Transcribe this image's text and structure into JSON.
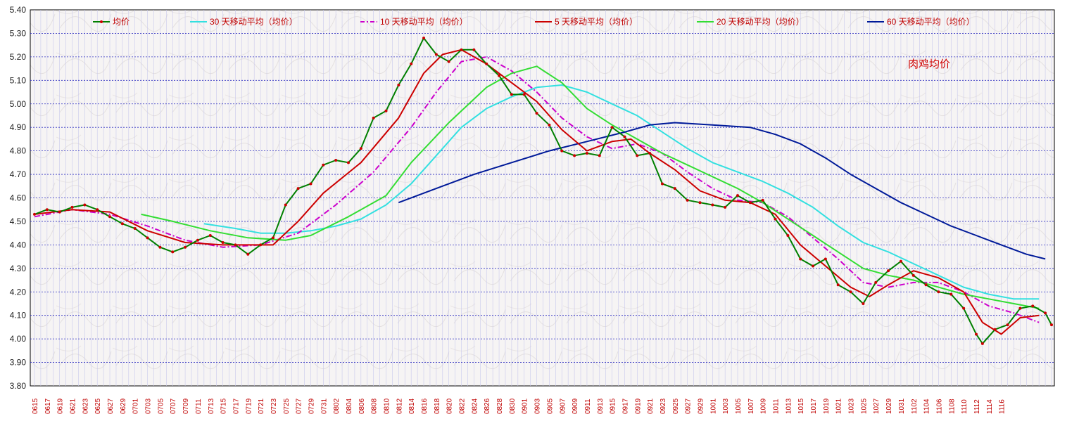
{
  "chart_data": {
    "type": "line",
    "title": "",
    "annotation": "肉鸡均价",
    "xlabel": "",
    "ylabel": "",
    "ylim": [
      3.8,
      5.4
    ],
    "yticks": [
      "3.80",
      "3.90",
      "4.00",
      "4.10",
      "4.20",
      "4.30",
      "4.40",
      "4.50",
      "4.60",
      "4.70",
      "4.80",
      "4.90",
      "5.00",
      "5.10",
      "5.20",
      "5.30",
      "5.40"
    ],
    "grid": true,
    "legend_position": "top",
    "categories": [
      "0615",
      "0617",
      "0619",
      "0621",
      "0623",
      "0625",
      "0627",
      "0629",
      "0701",
      "0703",
      "0705",
      "0707",
      "0709",
      "0711",
      "0713",
      "0715",
      "0717",
      "0719",
      "0721",
      "0723",
      "0725",
      "0727",
      "0729",
      "0731",
      "0802",
      "0804",
      "0806",
      "0808",
      "0810",
      "0812",
      "0814",
      "0816",
      "0818",
      "0820",
      "0822",
      "0824",
      "0826",
      "0828",
      "0830",
      "0901",
      "0903",
      "0905",
      "0907",
      "0909",
      "0911",
      "0913",
      "0915",
      "0917",
      "0919",
      "0921",
      "0923",
      "0925",
      "0927",
      "0929",
      "1001",
      "1003",
      "1005",
      "1007",
      "1009",
      "1011",
      "1013",
      "1015",
      "1017",
      "1019",
      "1021",
      "1023",
      "1025",
      "1027",
      "1029",
      "1031",
      "1102",
      "1104",
      "1106",
      "1108",
      "1110",
      "1112",
      "1114",
      "1116"
    ],
    "series": [
      {
        "name": "均价",
        "color": "#008000",
        "marker_color": "#cc0000",
        "style": "solid-marker",
        "values": [
          [
            0,
            4.53
          ],
          [
            2,
            4.55
          ],
          [
            4,
            4.54
          ],
          [
            6,
            4.56
          ],
          [
            8,
            4.57
          ],
          [
            10,
            4.55
          ],
          [
            12,
            4.52
          ],
          [
            14,
            4.49
          ],
          [
            16,
            4.47
          ],
          [
            18,
            4.43
          ],
          [
            20,
            4.39
          ],
          [
            22,
            4.37
          ],
          [
            24,
            4.39
          ],
          [
            26,
            4.42
          ],
          [
            28,
            4.44
          ],
          [
            30,
            4.41
          ],
          [
            32,
            4.4
          ],
          [
            34,
            4.36
          ],
          [
            36,
            4.4
          ],
          [
            38,
            4.43
          ],
          [
            40,
            4.57
          ],
          [
            42,
            4.64
          ],
          [
            44,
            4.66
          ],
          [
            46,
            4.74
          ],
          [
            48,
            4.76
          ],
          [
            50,
            4.75
          ],
          [
            52,
            4.81
          ],
          [
            54,
            4.94
          ],
          [
            56,
            4.97
          ],
          [
            58,
            5.08
          ],
          [
            60,
            5.17
          ],
          [
            62,
            5.28
          ],
          [
            64,
            5.21
          ],
          [
            66,
            5.18
          ],
          [
            68,
            5.23
          ],
          [
            70,
            5.23
          ],
          [
            72,
            5.17
          ],
          [
            74,
            5.12
          ],
          [
            76,
            5.04
          ],
          [
            78,
            5.04
          ],
          [
            80,
            4.96
          ],
          [
            82,
            4.91
          ],
          [
            84,
            4.8
          ],
          [
            86,
            4.78
          ],
          [
            88,
            4.79
          ],
          [
            90,
            4.78
          ],
          [
            92,
            4.9
          ],
          [
            94,
            4.86
          ],
          [
            96,
            4.78
          ],
          [
            98,
            4.79
          ],
          [
            100,
            4.66
          ],
          [
            102,
            4.64
          ],
          [
            104,
            4.59
          ],
          [
            106,
            4.58
          ],
          [
            108,
            4.57
          ],
          [
            110,
            4.56
          ],
          [
            112,
            4.61
          ],
          [
            114,
            4.58
          ],
          [
            116,
            4.59
          ],
          [
            118,
            4.51
          ],
          [
            120,
            4.44
          ],
          [
            122,
            4.34
          ],
          [
            124,
            4.31
          ],
          [
            126,
            4.34
          ],
          [
            128,
            4.23
          ],
          [
            130,
            4.2
          ],
          [
            132,
            4.15
          ],
          [
            134,
            4.24
          ],
          [
            136,
            4.29
          ],
          [
            138,
            4.33
          ],
          [
            140,
            4.27
          ],
          [
            142,
            4.23
          ],
          [
            144,
            4.2
          ],
          [
            146,
            4.19
          ],
          [
            148,
            4.13
          ],
          [
            150,
            4.02
          ],
          [
            151,
            3.98
          ],
          [
            153,
            4.04
          ],
          [
            155,
            4.06
          ],
          [
            157,
            4.13
          ],
          [
            159,
            4.14
          ],
          [
            161,
            4.11
          ],
          [
            162,
            4.06
          ]
        ]
      },
      {
        "name": "30 天移动平均（均价）",
        "color": "#33e0e0",
        "style": "solid",
        "values": [
          [
            27,
            4.49
          ],
          [
            32,
            4.47
          ],
          [
            36,
            4.45
          ],
          [
            40,
            4.45
          ],
          [
            44,
            4.46
          ],
          [
            48,
            4.48
          ],
          [
            52,
            4.51
          ],
          [
            56,
            4.57
          ],
          [
            60,
            4.66
          ],
          [
            64,
            4.78
          ],
          [
            68,
            4.9
          ],
          [
            72,
            4.98
          ],
          [
            76,
            5.03
          ],
          [
            80,
            5.07
          ],
          [
            84,
            5.08
          ],
          [
            88,
            5.05
          ],
          [
            92,
            5.0
          ],
          [
            96,
            4.95
          ],
          [
            100,
            4.88
          ],
          [
            104,
            4.81
          ],
          [
            108,
            4.75
          ],
          [
            112,
            4.71
          ],
          [
            116,
            4.67
          ],
          [
            120,
            4.62
          ],
          [
            124,
            4.56
          ],
          [
            128,
            4.48
          ],
          [
            132,
            4.41
          ],
          [
            136,
            4.37
          ],
          [
            140,
            4.32
          ],
          [
            144,
            4.27
          ],
          [
            148,
            4.22
          ],
          [
            152,
            4.19
          ],
          [
            156,
            4.17
          ],
          [
            160,
            4.17
          ]
        ]
      },
      {
        "name": "10 天移动平均（均价）",
        "color": "#cc00cc",
        "style": "dashdot",
        "values": [
          [
            0,
            4.52
          ],
          [
            6,
            4.55
          ],
          [
            12,
            4.53
          ],
          [
            18,
            4.48
          ],
          [
            24,
            4.42
          ],
          [
            30,
            4.39
          ],
          [
            36,
            4.4
          ],
          [
            42,
            4.45
          ],
          [
            48,
            4.57
          ],
          [
            54,
            4.71
          ],
          [
            60,
            4.9
          ],
          [
            64,
            5.05
          ],
          [
            68,
            5.18
          ],
          [
            72,
            5.2
          ],
          [
            76,
            5.14
          ],
          [
            80,
            5.05
          ],
          [
            84,
            4.94
          ],
          [
            88,
            4.86
          ],
          [
            92,
            4.81
          ],
          [
            96,
            4.83
          ],
          [
            100,
            4.79
          ],
          [
            104,
            4.71
          ],
          [
            108,
            4.64
          ],
          [
            112,
            4.59
          ],
          [
            116,
            4.58
          ],
          [
            120,
            4.52
          ],
          [
            124,
            4.43
          ],
          [
            128,
            4.34
          ],
          [
            132,
            4.24
          ],
          [
            136,
            4.22
          ],
          [
            140,
            4.24
          ],
          [
            144,
            4.24
          ],
          [
            148,
            4.2
          ],
          [
            152,
            4.14
          ],
          [
            156,
            4.11
          ],
          [
            160,
            4.07
          ]
        ]
      },
      {
        "name": "5 天移动平均（均价）",
        "color": "#cc0000",
        "style": "solid",
        "values": [
          [
            0,
            4.53
          ],
          [
            6,
            4.55
          ],
          [
            12,
            4.54
          ],
          [
            18,
            4.46
          ],
          [
            24,
            4.41
          ],
          [
            30,
            4.4
          ],
          [
            34,
            4.4
          ],
          [
            38,
            4.4
          ],
          [
            42,
            4.5
          ],
          [
            46,
            4.62
          ],
          [
            52,
            4.75
          ],
          [
            58,
            4.94
          ],
          [
            62,
            5.13
          ],
          [
            65,
            5.21
          ],
          [
            68,
            5.23
          ],
          [
            72,
            5.17
          ],
          [
            76,
            5.09
          ],
          [
            80,
            5.01
          ],
          [
            84,
            4.89
          ],
          [
            88,
            4.8
          ],
          [
            92,
            4.84
          ],
          [
            95,
            4.85
          ],
          [
            98,
            4.79
          ],
          [
            102,
            4.72
          ],
          [
            106,
            4.63
          ],
          [
            110,
            4.59
          ],
          [
            114,
            4.58
          ],
          [
            118,
            4.53
          ],
          [
            122,
            4.4
          ],
          [
            126,
            4.31
          ],
          [
            130,
            4.22
          ],
          [
            133,
            4.18
          ],
          [
            136,
            4.23
          ],
          [
            140,
            4.29
          ],
          [
            144,
            4.26
          ],
          [
            148,
            4.2
          ],
          [
            151,
            4.07
          ],
          [
            154,
            4.02
          ],
          [
            157,
            4.09
          ],
          [
            160,
            4.1
          ]
        ]
      },
      {
        "name": "20 天移动平均（均价）",
        "color": "#33dd33",
        "style": "solid",
        "values": [
          [
            17,
            4.53
          ],
          [
            22,
            4.5
          ],
          [
            28,
            4.46
          ],
          [
            34,
            4.43
          ],
          [
            40,
            4.42
          ],
          [
            44,
            4.44
          ],
          [
            50,
            4.52
          ],
          [
            56,
            4.61
          ],
          [
            60,
            4.75
          ],
          [
            66,
            4.92
          ],
          [
            72,
            5.07
          ],
          [
            76,
            5.13
          ],
          [
            80,
            5.16
          ],
          [
            84,
            5.09
          ],
          [
            88,
            4.98
          ],
          [
            92,
            4.91
          ],
          [
            96,
            4.85
          ],
          [
            100,
            4.79
          ],
          [
            104,
            4.74
          ],
          [
            108,
            4.69
          ],
          [
            112,
            4.64
          ],
          [
            116,
            4.58
          ],
          [
            120,
            4.51
          ],
          [
            124,
            4.44
          ],
          [
            128,
            4.37
          ],
          [
            132,
            4.3
          ],
          [
            136,
            4.27
          ],
          [
            140,
            4.25
          ],
          [
            144,
            4.22
          ],
          [
            148,
            4.19
          ],
          [
            152,
            4.17
          ],
          [
            156,
            4.15
          ],
          [
            160,
            4.13
          ]
        ]
      },
      {
        "name": "60 天移动平均（均价）",
        "color": "#001a99",
        "style": "solid",
        "values": [
          [
            58,
            4.58
          ],
          [
            64,
            4.64
          ],
          [
            70,
            4.7
          ],
          [
            76,
            4.75
          ],
          [
            82,
            4.8
          ],
          [
            88,
            4.84
          ],
          [
            94,
            4.88
          ],
          [
            98,
            4.91
          ],
          [
            102,
            4.92
          ],
          [
            108,
            4.91
          ],
          [
            114,
            4.9
          ],
          [
            118,
            4.87
          ],
          [
            122,
            4.83
          ],
          [
            126,
            4.77
          ],
          [
            130,
            4.7
          ],
          [
            134,
            4.64
          ],
          [
            138,
            4.58
          ],
          [
            142,
            4.53
          ],
          [
            146,
            4.48
          ],
          [
            150,
            4.44
          ],
          [
            154,
            4.4
          ],
          [
            158,
            4.36
          ],
          [
            161,
            4.34
          ]
        ]
      }
    ]
  }
}
